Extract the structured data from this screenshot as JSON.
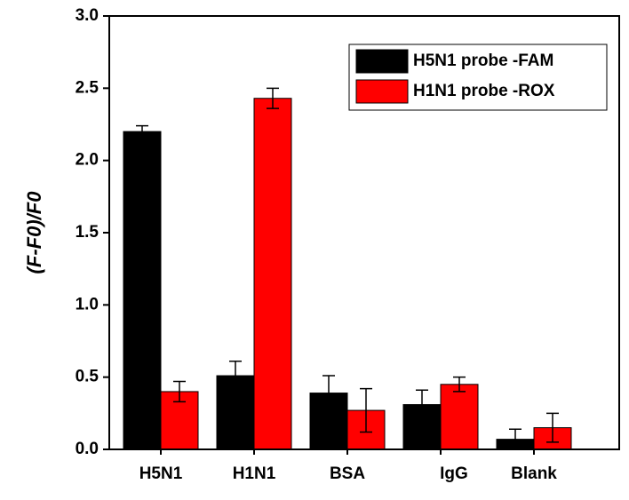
{
  "chart_data": {
    "type": "bar",
    "y_label": "(F-F0)/F0",
    "categories": [
      "H5N1",
      "H1N1",
      "BSA",
      "IgG",
      "Blank"
    ],
    "series": [
      {
        "name": "H5N1 probe -FAM",
        "color": "#000000",
        "values": [
          2.2,
          0.51,
          0.39,
          0.31,
          0.07
        ],
        "errors": [
          0.04,
          0.1,
          0.12,
          0.1,
          0.07
        ]
      },
      {
        "name": "H1N1 probe -ROX",
        "color": "#ff0000",
        "values": [
          0.4,
          2.43,
          0.27,
          0.45,
          0.15
        ],
        "errors": [
          0.07,
          0.07,
          0.15,
          0.05,
          0.1
        ]
      }
    ],
    "ylim": [
      0,
      3
    ],
    "yticks": [
      {
        "value": 0,
        "label": "0.0"
      },
      0.5,
      {
        "value": 1,
        "label": "1.0"
      },
      1.5,
      {
        "value": 2,
        "label": "2.0"
      },
      2.5,
      {
        "value": 3,
        "label": "3.0"
      }
    ],
    "legend": "top-right"
  }
}
